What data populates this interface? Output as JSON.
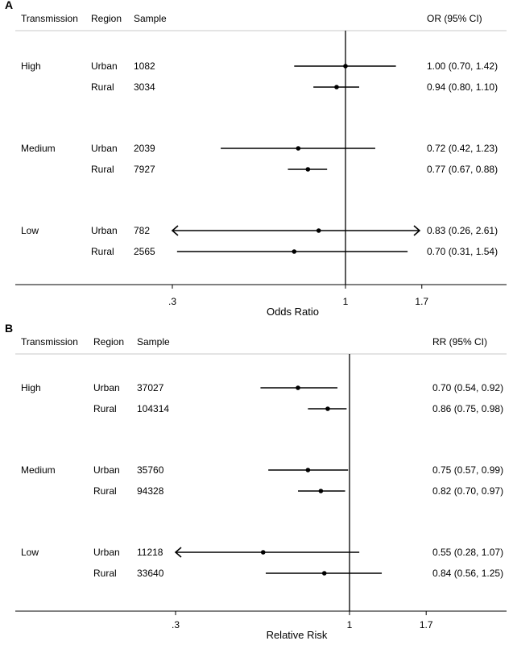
{
  "chart_data": [
    {
      "panel_label": "A",
      "type": "forest",
      "scale": "log",
      "reference_line": 1,
      "headers": {
        "transmission": "Transmission",
        "region": "Region",
        "sample": "Sample",
        "estimate": "OR (95% CI)"
      },
      "xlabel": "Odds Ratio",
      "xticks": [
        0.3,
        1,
        1.7
      ],
      "xtick_labels": [
        ".3",
        "1",
        "1.7"
      ],
      "xlim": [
        0.24,
        2.8
      ],
      "groups": [
        {
          "name": "High",
          "rows": [
            {
              "region": "Urban",
              "sample": "1082",
              "estimate": 1.0,
              "lower": 0.7,
              "upper": 1.42,
              "label": "1.00 (0.70, 1.42)"
            },
            {
              "region": "Rural",
              "sample": "3034",
              "estimate": 0.94,
              "lower": 0.8,
              "upper": 1.1,
              "label": "0.94 (0.80, 1.10)"
            }
          ]
        },
        {
          "name": "Medium",
          "rows": [
            {
              "region": "Urban",
              "sample": "2039",
              "estimate": 0.72,
              "lower": 0.42,
              "upper": 1.23,
              "label": "0.72 (0.42, 1.23)"
            },
            {
              "region": "Rural",
              "sample": "7927",
              "estimate": 0.77,
              "lower": 0.67,
              "upper": 0.88,
              "label": "0.77 (0.67, 0.88)"
            }
          ]
        },
        {
          "name": "Low",
          "rows": [
            {
              "region": "Urban",
              "sample": "782",
              "estimate": 0.83,
              "lower": 0.26,
              "upper": 2.61,
              "label": "0.83 (0.26, 2.61)"
            },
            {
              "region": "Rural",
              "sample": "2565",
              "estimate": 0.7,
              "lower": 0.31,
              "upper": 1.54,
              "label": "0.70 (0.31, 1.54)"
            }
          ]
        }
      ]
    },
    {
      "panel_label": "B",
      "type": "forest",
      "scale": "log",
      "reference_line": 1,
      "headers": {
        "transmission": "Transmission",
        "region": "Region",
        "sample": "Sample",
        "estimate": "RR (95% CI)"
      },
      "xlabel": "Relative Risk",
      "xticks": [
        0.3,
        1,
        1.7
      ],
      "xtick_labels": [
        ".3",
        "1",
        "1.7"
      ],
      "xlim": [
        0.24,
        2.8
      ],
      "groups": [
        {
          "name": "High",
          "rows": [
            {
              "region": "Urban",
              "sample": "37027",
              "estimate": 0.7,
              "lower": 0.54,
              "upper": 0.92,
              "label": "0.70 (0.54, 0.92)"
            },
            {
              "region": "Rural",
              "sample": "104314",
              "estimate": 0.86,
              "lower": 0.75,
              "upper": 0.98,
              "label": "0.86 (0.75, 0.98)"
            }
          ]
        },
        {
          "name": "Medium",
          "rows": [
            {
              "region": "Urban",
              "sample": "35760",
              "estimate": 0.75,
              "lower": 0.57,
              "upper": 0.99,
              "label": "0.75 (0.57, 0.99)"
            },
            {
              "region": "Rural",
              "sample": "94328",
              "estimate": 0.82,
              "lower": 0.7,
              "upper": 0.97,
              "label": "0.82 (0.70, 0.97)"
            }
          ]
        },
        {
          "name": "Low",
          "rows": [
            {
              "region": "Urban",
              "sample": "11218",
              "estimate": 0.55,
              "lower": 0.28,
              "upper": 1.07,
              "label": "0.55 (0.28, 1.07)"
            },
            {
              "region": "Rural",
              "sample": "33640",
              "estimate": 0.84,
              "lower": 0.56,
              "upper": 1.25,
              "label": "0.84 (0.56, 1.25)"
            }
          ]
        }
      ]
    }
  ]
}
